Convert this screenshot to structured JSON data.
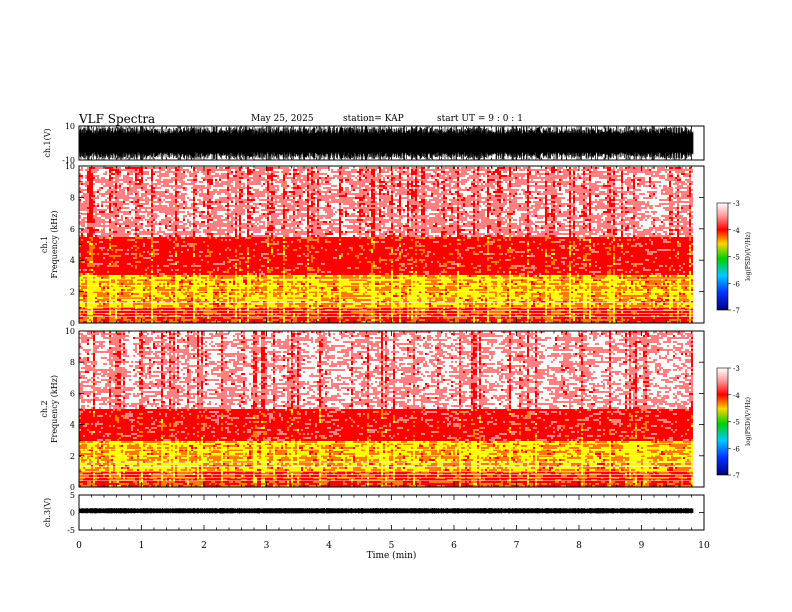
{
  "header": {
    "title": "VLF Spectra",
    "date": "May 25, 2025",
    "station": "station= KAP",
    "start": "start  UT  =   9 : 0  : 1"
  },
  "chart_data": [
    {
      "type": "line",
      "title": "ch.1(V)",
      "ylabel": "ch.1(V)",
      "xlim": [
        0,
        10
      ],
      "ylim": [
        -10,
        10
      ],
      "ytick_labels": [
        "10",
        "-10"
      ],
      "signal_amplitude": 10,
      "description_of_series": "broadband waveform saturating near full scale"
    },
    {
      "type": "heatmap",
      "title": "ch.1 spectrogram",
      "ylabel": "ch.1 Frequency (kHz)",
      "xlim": [
        0,
        9.83
      ],
      "ylim": [
        0,
        10
      ],
      "ytick_labels": [
        "0",
        "2",
        "4",
        "6",
        "8",
        "10"
      ],
      "colorbar": {
        "label": "log(PSD)(V²/Hz)",
        "ticks": [
          "-3",
          "-4",
          "-5",
          "-6",
          "-7"
        ],
        "range": [
          -7,
          -3
        ]
      },
      "bands_khz": [
        {
          "from": 0.0,
          "to": 1.0,
          "level": -4.0
        },
        {
          "from": 1.0,
          "to": 3.0,
          "level": -3.5
        },
        {
          "from": 3.0,
          "to": 5.5,
          "level": -4.3
        },
        {
          "from": 5.5,
          "to": 10.0,
          "level": -5.0
        }
      ]
    },
    {
      "type": "heatmap",
      "title": "ch.2 spectrogram",
      "ylabel": "ch.2 Frequency (kHz)",
      "xlim": [
        0,
        9.83
      ],
      "ylim": [
        0,
        10
      ],
      "ytick_labels": [
        "0",
        "2",
        "4",
        "6",
        "8",
        "10"
      ],
      "colorbar": {
        "label": "log(PSD)(V²/Hz)",
        "ticks": [
          "-3",
          "-4",
          "-5",
          "-6",
          "-7"
        ],
        "range": [
          -7,
          -3
        ]
      },
      "bands_khz": [
        {
          "from": 0.0,
          "to": 1.0,
          "level": -4.0
        },
        {
          "from": 1.0,
          "to": 3.0,
          "level": -3.5
        },
        {
          "from": 3.0,
          "to": 5.0,
          "level": -4.4
        },
        {
          "from": 5.0,
          "to": 10.0,
          "level": -5.1
        }
      ]
    },
    {
      "type": "line",
      "title": "ch.3(V)",
      "ylabel": "ch.3(V)",
      "xlim": [
        0,
        10
      ],
      "ylim": [
        -5,
        5
      ],
      "ytick_labels": [
        "5",
        "0",
        "-5"
      ],
      "signal_center": 0,
      "signal_amplitude": 0.8
    }
  ],
  "xaxis": {
    "label": "Time  (min)",
    "range": [
      0,
      10
    ],
    "ticks": [
      "0",
      "1",
      "2",
      "3",
      "4",
      "5",
      "6",
      "7",
      "8",
      "9",
      "10"
    ]
  },
  "colors": {
    "trace": "#000000",
    "high": "#ffff00",
    "mid": "#ff0000",
    "low": "#ffffff"
  }
}
